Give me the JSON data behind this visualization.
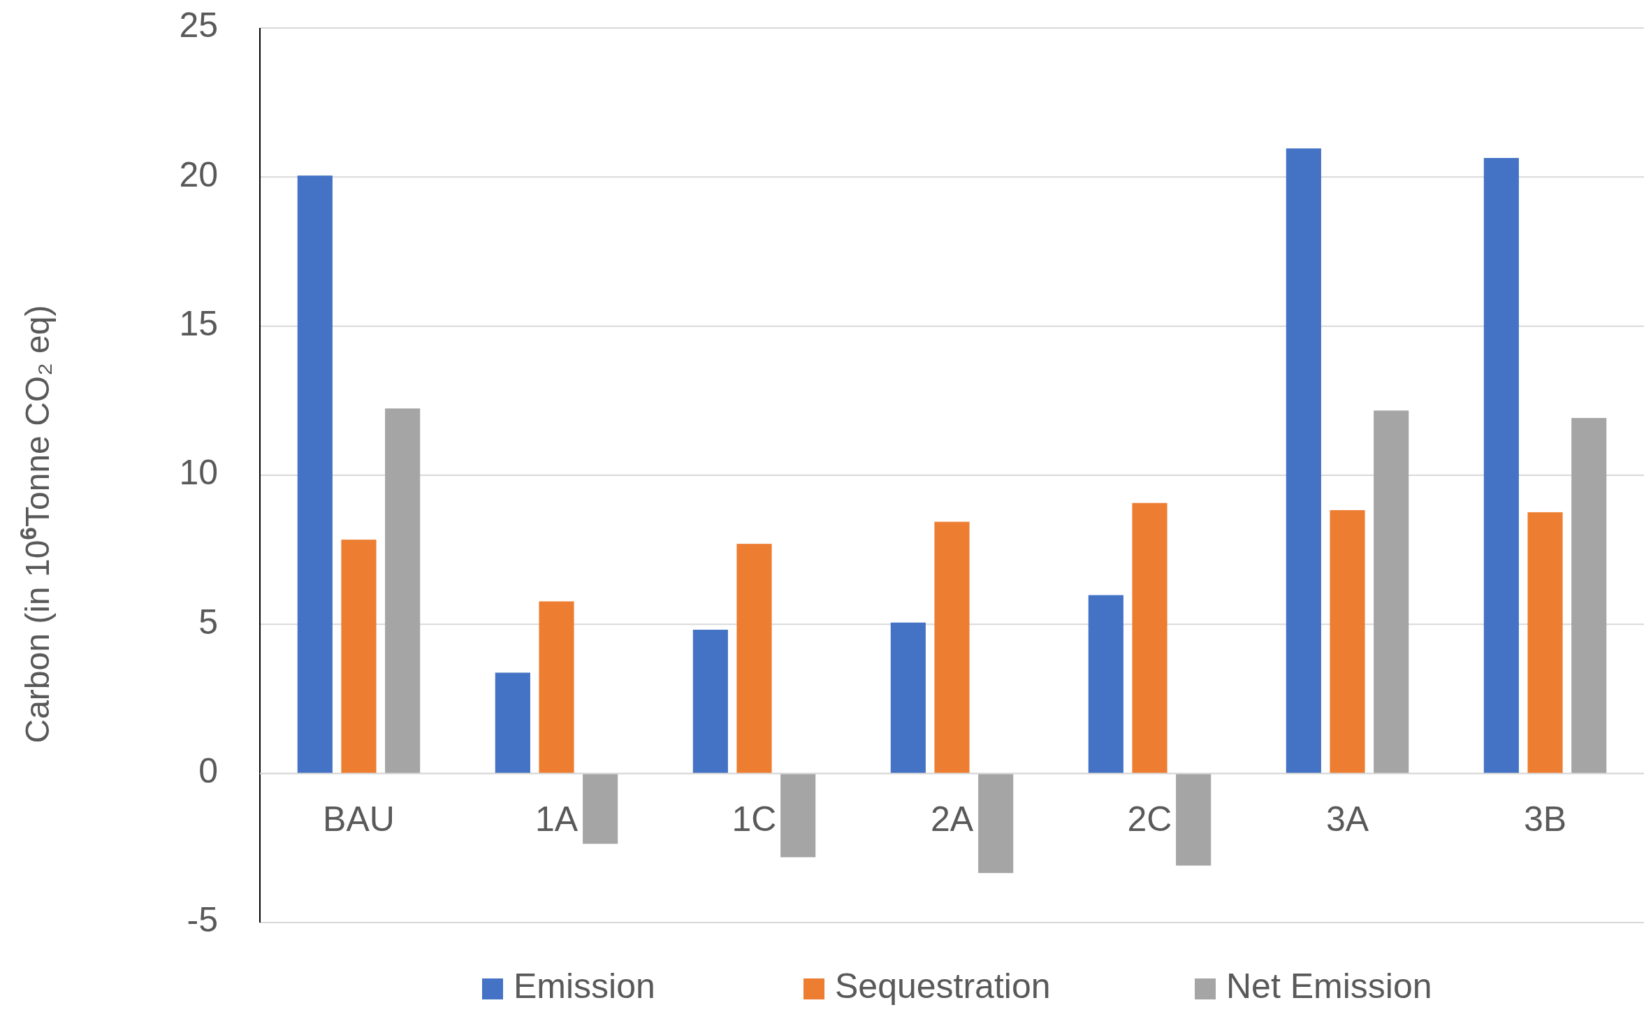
{
  "chart_data": {
    "type": "bar",
    "ylabel": "Carbon (in 10$^{6}$Tonne CO₂ eq)",
    "categories": [
      "BAU",
      "1A",
      "1C",
      "2A",
      "2C",
      "3A",
      "3B"
    ],
    "series": [
      {
        "name": "Emission",
        "color": "#4472c4",
        "values": [
          20.05,
          3.38,
          4.82,
          5.06,
          5.98,
          20.96,
          20.64
        ]
      },
      {
        "name": "Sequestration",
        "color": "#ed7d31",
        "values": [
          7.84,
          5.77,
          7.7,
          8.44,
          9.07,
          8.83,
          8.76
        ]
      },
      {
        "name": "Net Emission",
        "color": "#a5a5a5",
        "values": [
          12.24,
          -2.36,
          -2.81,
          -3.34,
          -3.09,
          12.17,
          11.92
        ]
      }
    ],
    "ylim": [
      -5,
      25
    ],
    "yticks": [
      -5,
      0,
      5,
      10,
      15,
      20,
      25
    ],
    "grid": "y",
    "legend": "bottom"
  }
}
